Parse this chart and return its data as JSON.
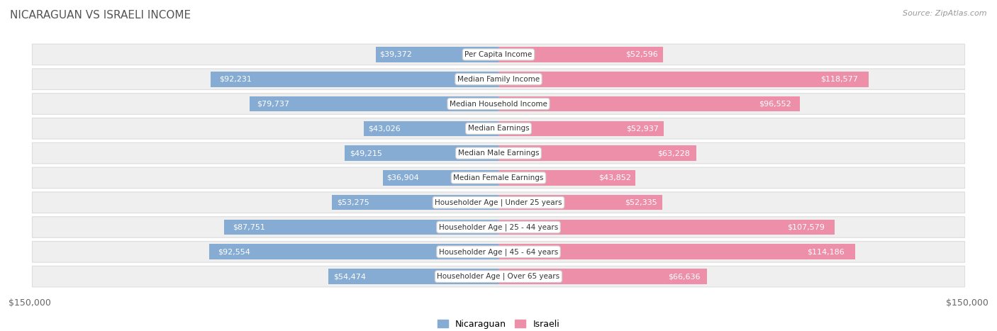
{
  "title": "NICARAGUAN VS ISRAELI INCOME",
  "source": "Source: ZipAtlas.com",
  "categories": [
    "Per Capita Income",
    "Median Family Income",
    "Median Household Income",
    "Median Earnings",
    "Median Male Earnings",
    "Median Female Earnings",
    "Householder Age | Under 25 years",
    "Householder Age | 25 - 44 years",
    "Householder Age | 45 - 64 years",
    "Householder Age | Over 65 years"
  ],
  "nicaraguan": [
    39372,
    92231,
    79737,
    43026,
    49215,
    36904,
    53275,
    87751,
    92554,
    54474
  ],
  "israeli": [
    52596,
    118577,
    96552,
    52937,
    63228,
    43852,
    52335,
    107579,
    114186,
    66636
  ],
  "max_val": 150000,
  "nicaraguan_color": "#87acd4",
  "israeli_color": "#ee8faa",
  "row_bg_color": "#efefef",
  "row_border_color": "#dddddd",
  "title_color": "#555555",
  "source_color": "#999999",
  "axis_label_color": "#666666",
  "label_inside_color": "#ffffff",
  "label_outside_color": "#666666",
  "center_label_bg": "#ffffff",
  "center_label_border": "#cccccc",
  "inside_threshold": 0.22
}
